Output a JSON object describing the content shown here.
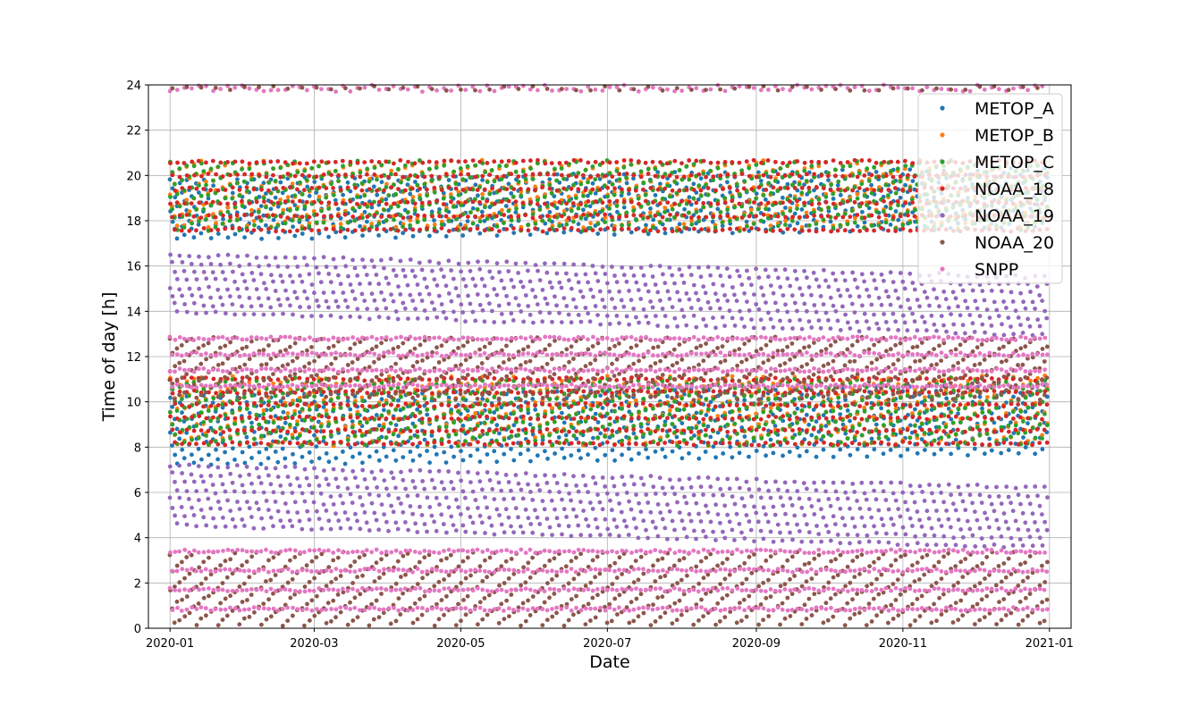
{
  "chart_data": {
    "type": "scatter",
    "title": "",
    "xlabel": "Date",
    "ylabel": "Time of day [h]",
    "x_ticks": [
      "2020-01",
      "2020-03",
      "2020-05",
      "2020-07",
      "2020-09",
      "2020-11",
      "2021-01"
    ],
    "y_ticks": [
      "0",
      "2",
      "4",
      "6",
      "8",
      "10",
      "12",
      "14",
      "16",
      "18",
      "20",
      "22",
      "24"
    ],
    "xlim": [
      "2019-12-23",
      "2021-01-10"
    ],
    "ylim": [
      0,
      24
    ],
    "grid": true,
    "legend_position": "top-right",
    "series": [
      {
        "name": "METOP_A",
        "color": "#1f77b4",
        "day_band": [
          17.0,
          19.8
        ],
        "night_band": [
          7.0,
          10.2
        ],
        "period_days": 7.0,
        "band_drift_h": 0.5,
        "marker": "dot"
      },
      {
        "name": "METOP_B",
        "color": "#ff7f0e",
        "day_band": [
          17.6,
          20.6
        ],
        "night_band": [
          8.0,
          11.1
        ],
        "period_days": 6.5,
        "band_drift_h": 0.0,
        "marker": "dot"
      },
      {
        "name": "METOP_C",
        "color": "#2ca02c",
        "day_band": [
          17.5,
          20.6
        ],
        "night_band": [
          8.0,
          11.0
        ],
        "period_days": 6.5,
        "band_drift_h": 0.0,
        "marker": "dot"
      },
      {
        "name": "NOAA_18",
        "color": "#d62728",
        "day_band": [
          17.0,
          20.6
        ],
        "night_band": [
          7.6,
          11.0
        ],
        "period_days": 6.0,
        "band_drift_h": 0.0,
        "marker": "dot"
      },
      {
        "name": "NOAA_19",
        "color": "#9467bd",
        "day_band": [
          13.6,
          16.5
        ],
        "night_band": [
          4.2,
          7.2
        ],
        "period_days": 8.0,
        "band_drift_h": -1.0,
        "marker": "dot"
      },
      {
        "name": "NOAA_20",
        "color": "#8c564b",
        "day_band": [
          10.0,
          12.8
        ],
        "night_band": [
          0.0,
          3.3
        ],
        "period_days": 4.5,
        "band_drift_h": 0.0,
        "marker": "dot"
      },
      {
        "name": "SNPP",
        "color": "#e377c2",
        "day_band": [
          10.0,
          12.8
        ],
        "night_band": [
          0.0,
          3.4
        ],
        "period_days": 4.0,
        "band_drift_h": 0.0,
        "marker": "dot",
        "extra_band": [
          23.7,
          24.0
        ]
      }
    ],
    "date_range": [
      "2020-01-01",
      "2020-12-31"
    ]
  }
}
